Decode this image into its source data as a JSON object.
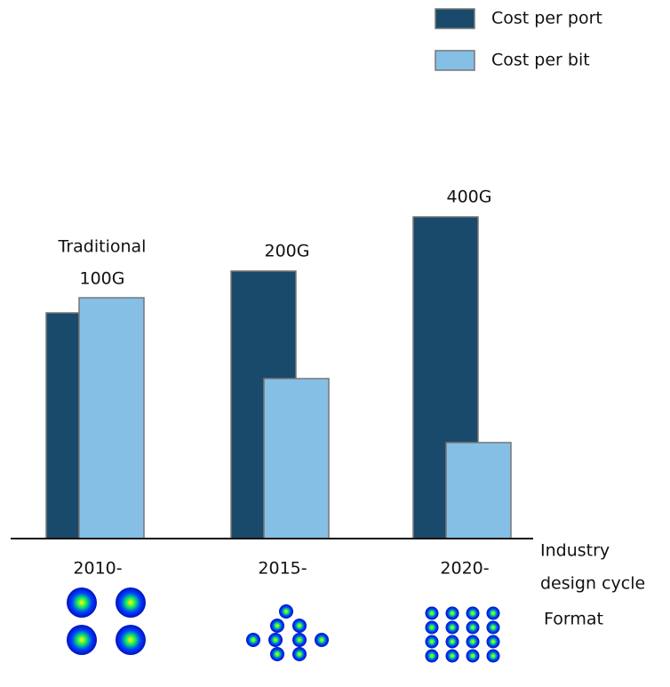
{
  "chart_data": {
    "type": "bar",
    "categories": [
      "2010-",
      "2015-",
      "2020-"
    ],
    "annotations": [
      [
        "Traditional",
        "100G"
      ],
      [
        "200G"
      ],
      [
        "400G"
      ]
    ],
    "x_label": [
      "Industry",
      "design cycle"
    ],
    "row_label": "Format",
    "series": [
      {
        "name": "Cost per port",
        "color": "#1a4a6b",
        "values": [
          254,
          301,
          362
        ]
      },
      {
        "name": "Cost per bit",
        "color": "#85bfe6",
        "values": [
          271,
          180,
          108
        ]
      }
    ],
    "ylim": [
      0,
      400
    ],
    "legend": "top-right"
  }
}
